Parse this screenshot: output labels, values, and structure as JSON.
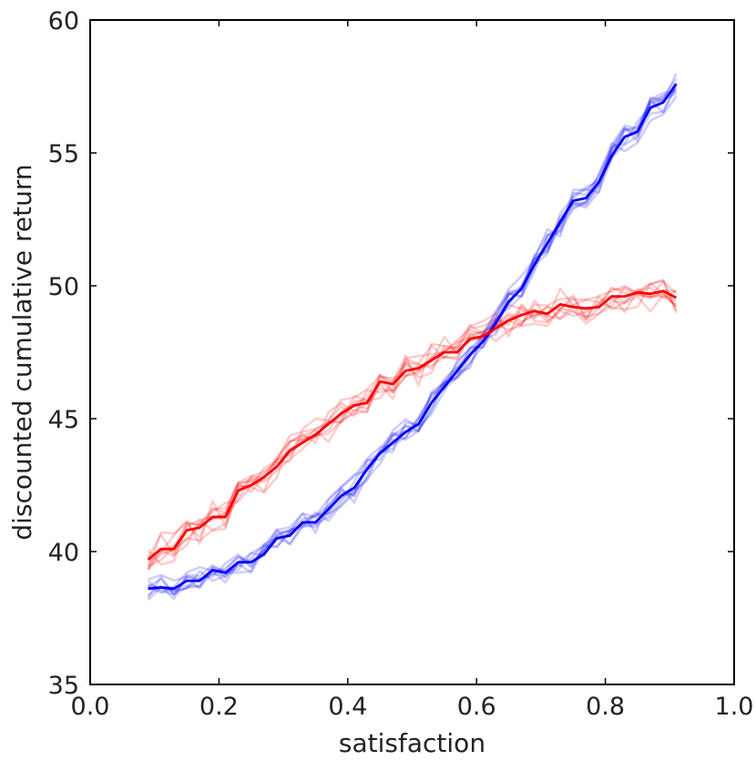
{
  "chart_data": {
    "type": "line",
    "title": "",
    "xlabel": "satisfaction",
    "ylabel": "discounted cumulative return",
    "xlim": [
      0.0,
      1.0
    ],
    "ylim": [
      35,
      60
    ],
    "xticks": [
      "0.0",
      "0.2",
      "0.4",
      "0.6",
      "0.8",
      "1.0"
    ],
    "yticks": [
      "35",
      "40",
      "45",
      "50",
      "55",
      "60"
    ],
    "grid": false,
    "legend": "none",
    "series": [
      {
        "color": "#0000ff",
        "x": [
          0.09,
          0.11,
          0.13,
          0.15,
          0.17,
          0.19,
          0.21,
          0.23,
          0.25,
          0.27,
          0.29,
          0.31,
          0.33,
          0.35,
          0.37,
          0.39,
          0.41,
          0.43,
          0.45,
          0.47,
          0.49,
          0.51,
          0.53,
          0.55,
          0.57,
          0.59,
          0.61,
          0.63,
          0.65,
          0.67,
          0.69,
          0.71,
          0.73,
          0.75,
          0.77,
          0.79,
          0.81,
          0.83,
          0.85,
          0.87,
          0.89,
          0.91
        ],
        "y": [
          38.6,
          38.65,
          38.6,
          38.9,
          38.9,
          39.3,
          39.2,
          39.6,
          39.6,
          39.9,
          40.5,
          40.6,
          41.1,
          41.1,
          41.6,
          42.1,
          42.4,
          43.1,
          43.7,
          44.1,
          44.5,
          44.8,
          45.6,
          46.2,
          46.8,
          47.4,
          47.9,
          48.6,
          49.4,
          49.9,
          50.8,
          51.6,
          52.4,
          53.2,
          53.3,
          53.9,
          54.9,
          55.6,
          55.8,
          56.7,
          56.9,
          57.6
        ]
      },
      {
        "color": "#ff0000",
        "x": [
          0.09,
          0.11,
          0.13,
          0.15,
          0.17,
          0.19,
          0.21,
          0.23,
          0.25,
          0.27,
          0.29,
          0.31,
          0.33,
          0.35,
          0.37,
          0.39,
          0.41,
          0.43,
          0.45,
          0.47,
          0.49,
          0.51,
          0.53,
          0.55,
          0.57,
          0.59,
          0.61,
          0.63,
          0.65,
          0.67,
          0.69,
          0.71,
          0.73,
          0.75,
          0.77,
          0.79,
          0.81,
          0.83,
          0.85,
          0.87,
          0.89,
          0.91
        ],
        "y": [
          39.7,
          40.1,
          40.1,
          40.8,
          40.9,
          41.3,
          41.3,
          42.3,
          42.5,
          42.8,
          43.2,
          43.8,
          44.1,
          44.4,
          44.8,
          45.2,
          45.5,
          45.6,
          46.4,
          46.3,
          46.8,
          46.9,
          47.2,
          47.5,
          47.5,
          48.0,
          48.1,
          48.4,
          48.7,
          48.9,
          49.05,
          48.95,
          49.3,
          49.2,
          49.15,
          49.2,
          49.6,
          49.6,
          49.75,
          49.7,
          49.8,
          49.55
        ]
      }
    ]
  }
}
